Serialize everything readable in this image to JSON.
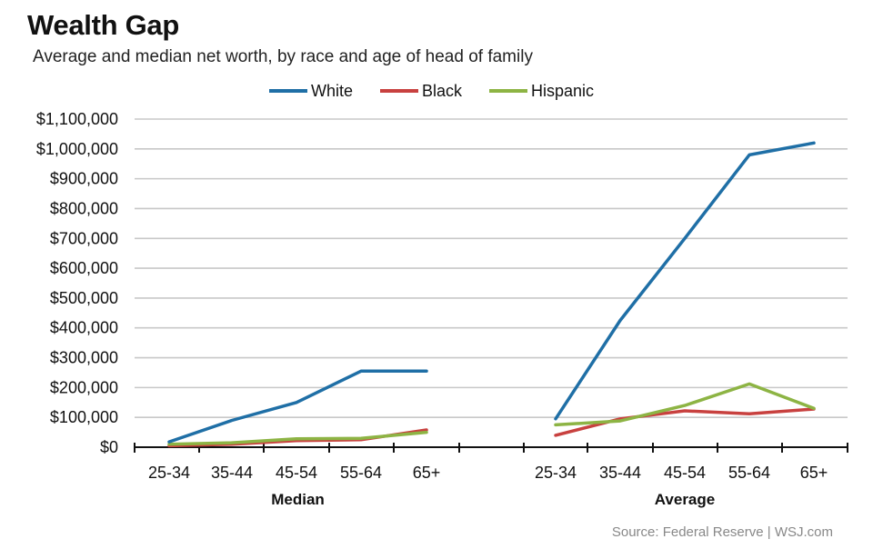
{
  "title": "Wealth Gap",
  "subtitle": "Average and median net worth, by race and age of head of family",
  "source": "Source: Federal Reserve  |  WSJ.com",
  "colors": {
    "White": "#1f6fa6",
    "Black": "#c8413f",
    "Hispanic": "#8db444",
    "grid": "#c8c8c8",
    "axis": "#111111"
  },
  "chart_data": {
    "type": "line",
    "title": "Wealth Gap",
    "subtitle": "Average and median net worth, by race and age of head of family",
    "ylim": [
      0,
      1100000
    ],
    "yticks": [
      0,
      100000,
      200000,
      300000,
      400000,
      500000,
      600000,
      700000,
      800000,
      900000,
      1000000,
      1100000
    ],
    "ytick_labels": [
      "$0",
      "$100,000",
      "$200,000",
      "$300,000",
      "$400,000",
      "$500,000",
      "$600,000",
      "$700,000",
      "$800,000",
      "$900,000",
      "$1,000,000",
      "$1,100,000"
    ],
    "grid": true,
    "legend_position": "top",
    "legend": [
      "White",
      "Black",
      "Hispanic"
    ],
    "panels": [
      {
        "label": "Median",
        "categories": [
          "25-34",
          "35-44",
          "45-54",
          "55-64",
          "65+"
        ],
        "series": [
          {
            "name": "White",
            "values": [
              18000,
              90000,
              150000,
              255000,
              255000
            ]
          },
          {
            "name": "Black",
            "values": [
              5000,
              10000,
              22000,
              25000,
              58000
            ]
          },
          {
            "name": "Hispanic",
            "values": [
              10000,
              15000,
              28000,
              30000,
              50000
            ]
          }
        ]
      },
      {
        "label": "Average",
        "categories": [
          "25-34",
          "35-44",
          "45-54",
          "55-64",
          "65+"
        ],
        "series": [
          {
            "name": "White",
            "values": [
              95000,
              425000,
              700000,
              980000,
              1020000
            ]
          },
          {
            "name": "Black",
            "values": [
              40000,
              95000,
              122000,
              112000,
              128000
            ]
          },
          {
            "name": "Hispanic",
            "values": [
              75000,
              88000,
              140000,
              212000,
              130000
            ]
          }
        ]
      }
    ]
  }
}
